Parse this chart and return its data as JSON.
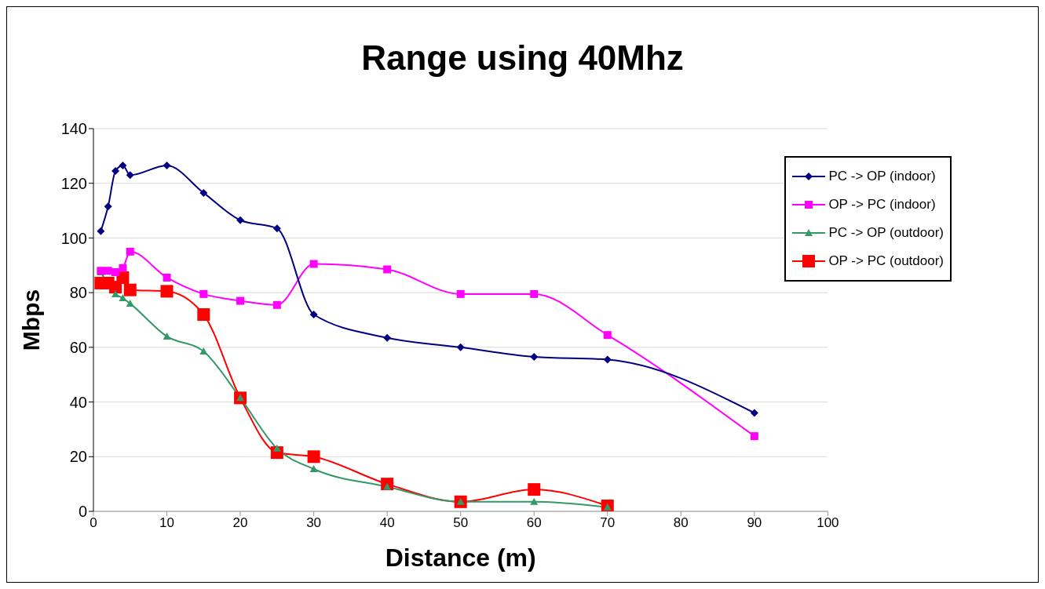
{
  "chart_data": {
    "type": "line",
    "title": "Range using 40Mhz",
    "xlabel": "Distance (m)",
    "ylabel": "Mbps",
    "xlim": [
      0,
      100
    ],
    "xticks": [
      0,
      10,
      20,
      30,
      40,
      50,
      60,
      70,
      80,
      90,
      100
    ],
    "ylim": [
      0,
      140
    ],
    "yticks": [
      0,
      20,
      40,
      60,
      80,
      100,
      120,
      140
    ],
    "grid": "y",
    "legend": "top right",
    "series": [
      {
        "name": "PC -> OP (indoor)",
        "color": "#000080",
        "marker": "diamond",
        "x": [
          1,
          2,
          3,
          4,
          5,
          10,
          15,
          20,
          25,
          30,
          40,
          50,
          60,
          70,
          90
        ],
        "values": [
          102.5,
          111.5,
          124.5,
          126.5,
          123,
          126.5,
          116.5,
          106.5,
          103.5,
          72,
          63.5,
          60,
          56.5,
          55.5,
          36
        ]
      },
      {
        "name": "OP -> PC (indoor)",
        "color": "#ff00ff",
        "marker": "square",
        "x": [
          1,
          2,
          3,
          4,
          5,
          10,
          15,
          20,
          25,
          30,
          40,
          50,
          60,
          70,
          90
        ],
        "values": [
          88,
          88,
          87.5,
          89,
          95,
          85.5,
          79.5,
          77,
          75.5,
          90.5,
          88.5,
          79.5,
          79.5,
          64.5,
          27.5
        ]
      },
      {
        "name": "PC -> OP (outdoor)",
        "color": "#339966",
        "marker": "triangle",
        "x": [
          1,
          3,
          4,
          5,
          10,
          15,
          20,
          25,
          30,
          40,
          50,
          60,
          70
        ],
        "values": [
          87.5,
          79.5,
          78,
          76,
          64,
          58.5,
          41.5,
          23,
          15.5,
          9,
          3.5,
          3.5,
          1.5
        ]
      },
      {
        "name": "OP -> PC (outdoor)",
        "color": "#ff0000",
        "marker": "square",
        "x": [
          1,
          2,
          3,
          4,
          5,
          10,
          15,
          20,
          25,
          30,
          40,
          50,
          60,
          70
        ],
        "values": [
          83.5,
          83.5,
          82,
          85.5,
          81,
          80.5,
          72,
          41.5,
          21.5,
          20,
          10,
          3.5,
          8,
          2
        ]
      }
    ]
  }
}
